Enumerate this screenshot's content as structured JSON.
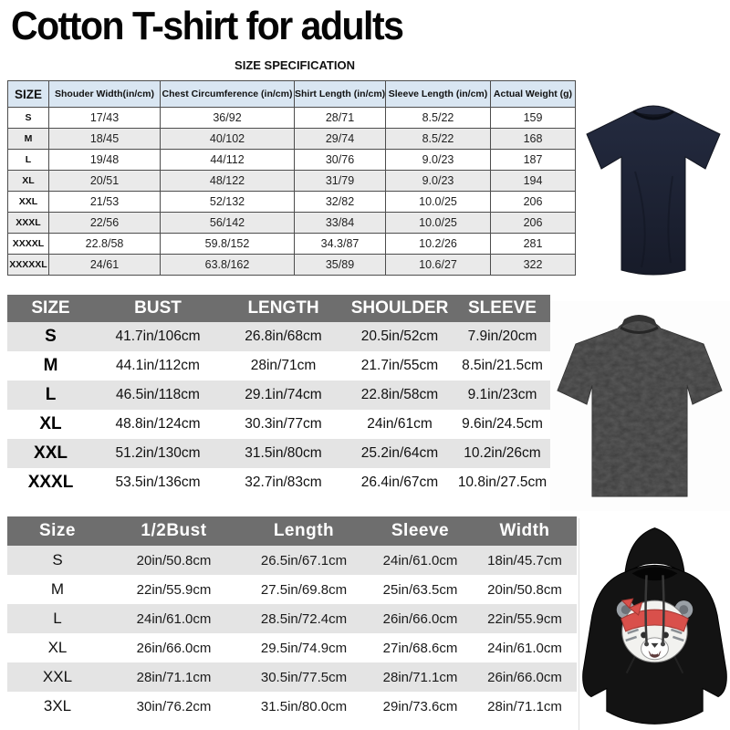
{
  "page": {
    "title": "Cotton T-shirt for adults",
    "caption": "SIZE SPECIFICATION"
  },
  "colors": {
    "table1-header-bg": "#d9e6f2",
    "table-header-dark": "#6e6e6e",
    "row-gray1": "#eaeaea",
    "row-gray2": "#e4e4e4",
    "grid-line": "#4d4d4d",
    "tee-navy": "#1b2030",
    "tee-navy-dark": "#12151f",
    "tee-charcoal": "#3d3d3d",
    "hoodie-black": "#131313",
    "bandana-red": "#d9504b"
  },
  "tables": {
    "classic": {
      "columns": [
        "SIZE",
        "Shouder Width(in/cm)",
        "Chest Circumference (in/cm)",
        "Shirt Length (in/cm)",
        "Sleeve Length (in/cm)",
        "Actual Weight (g)"
      ],
      "widths": [
        45,
        122,
        147,
        100,
        115,
        93
      ],
      "rows": [
        [
          "S",
          "17/43",
          "36/92",
          "28/71",
          "8.5/22",
          "159"
        ],
        [
          "M",
          "18/45",
          "40/102",
          "29/74",
          "8.5/22",
          "168"
        ],
        [
          "L",
          "19/48",
          "44/112",
          "30/76",
          "9.0/23",
          "187"
        ],
        [
          "XL",
          "20/51",
          "48/122",
          "31/79",
          "9.0/23",
          "194"
        ],
        [
          "XXL",
          "21/53",
          "52/132",
          "32/82",
          "10.0/25",
          "206"
        ],
        [
          "XXXL",
          "22/56",
          "56/142",
          "33/84",
          "10.0/25",
          "206"
        ],
        [
          "XXXXL",
          "22.8/58",
          "59.8/152",
          "34.3/87",
          "10.2/26",
          "281"
        ],
        [
          "XXXXXL",
          "24/61",
          "63.8/162",
          "35/89",
          "10.6/27",
          "322"
        ]
      ]
    },
    "oversized": {
      "columns": [
        "SIZE",
        "BUST",
        "LENGTH",
        "SHOULDER",
        "SLEEVE"
      ],
      "widths": [
        95,
        140,
        135,
        120,
        105
      ],
      "rows": [
        [
          "S",
          "41.7in/106cm",
          "26.8in/68cm",
          "20.5in/52cm",
          "7.9in/20cm"
        ],
        [
          "M",
          "44.1in/112cm",
          "28in/71cm",
          "21.7in/55cm",
          "8.5in/21.5cm"
        ],
        [
          "L",
          "46.5in/118cm",
          "29.1in/74cm",
          "22.8in/58cm",
          "9.1in/23cm"
        ],
        [
          "XL",
          "48.8in/124cm",
          "30.3in/77cm",
          "24in/61cm",
          "9.6in/24.5cm"
        ],
        [
          "XXL",
          "51.2in/130cm",
          "31.5in/80cm",
          "25.2in/64cm",
          "10.2in/26cm"
        ],
        [
          "XXXL",
          "53.5in/136cm",
          "32.7in/83cm",
          "26.4in/67cm",
          "10.8in/27.5cm"
        ]
      ]
    },
    "hoodie": {
      "columns": [
        "Size",
        "1/2Bust",
        "Length",
        "Sleeve",
        "Width"
      ],
      "widths": [
        110,
        145,
        140,
        115,
        114
      ],
      "rows": [
        [
          "S",
          "20in/50.8cm",
          "26.5in/67.1cm",
          "24in/61.0cm",
          "18in/45.7cm"
        ],
        [
          "M",
          "22in/55.9cm",
          "27.5in/69.8cm",
          "25in/63.5cm",
          "20in/50.8cm"
        ],
        [
          "L",
          "24in/61.0cm",
          "28.5in/72.4cm",
          "26in/66.0cm",
          "22in/55.9cm"
        ],
        [
          "XL",
          "26in/66.0cm",
          "29.5in/74.9cm",
          "27in/68.6cm",
          "24in/61.0cm"
        ],
        [
          "XXL",
          "28in/71.1cm",
          "30.5in/77.5cm",
          "28in/71.1cm",
          "26in/66.0cm"
        ],
        [
          "3XL",
          "30in/76.2cm",
          "31.5in/80.0cm",
          "29in/73.6cm",
          "28in/71.1cm"
        ]
      ]
    }
  }
}
